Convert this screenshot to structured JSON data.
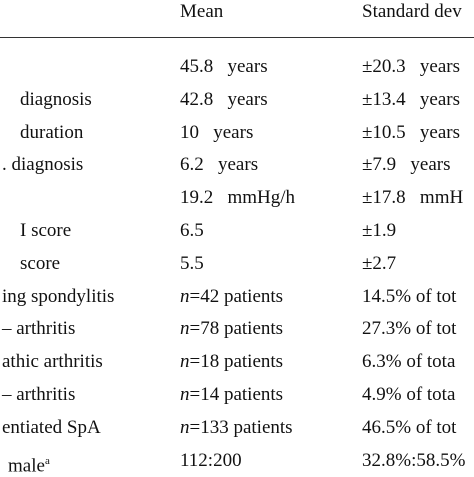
{
  "table": {
    "header": [
      "",
      "Mean",
      "Standard dev"
    ],
    "rows": [
      [
        "",
        "45.8   years",
        "±20.3   years"
      ],
      [
        "diagnosis",
        "42.8   years",
        "±13.4   years"
      ],
      [
        "duration",
        "10   years",
        "±10.5   years"
      ],
      [
        ". diagnosis",
        "6.2   years",
        "±7.9   years"
      ],
      [
        "",
        "19.2   mmHg/h",
        "±17.8   mmH"
      ],
      [
        "I score",
        "6.5",
        "±1.9"
      ],
      [
        "score",
        "5.5",
        "±2.7"
      ],
      [
        "ing spondylitis",
        [
          {
            "t": "n",
            "i": true
          },
          {
            "t": "=42 patients"
          }
        ],
        "14.5% of tot"
      ],
      [
        "– arthritis",
        [
          {
            "t": "n",
            "i": true
          },
          {
            "t": "=78 patients"
          }
        ],
        "27.3% of tot"
      ],
      [
        "athic arthritis",
        [
          {
            "t": "n",
            "i": true
          },
          {
            "t": "=18 patients"
          }
        ],
        "6.3% of tota"
      ],
      [
        "– arthritis",
        [
          {
            "t": "n",
            "i": true
          },
          {
            "t": "=14 patients"
          }
        ],
        "4.9% of tota"
      ],
      [
        "entiated SpA",
        [
          {
            "t": "n",
            "i": true
          },
          {
            "t": "=133 patients"
          }
        ],
        "46.5% of tot"
      ],
      [
        [
          {
            "t": "male"
          },
          {
            "t": "a",
            "sup": true
          }
        ],
        "112:200",
        "32.8%:58.5%"
      ]
    ]
  }
}
